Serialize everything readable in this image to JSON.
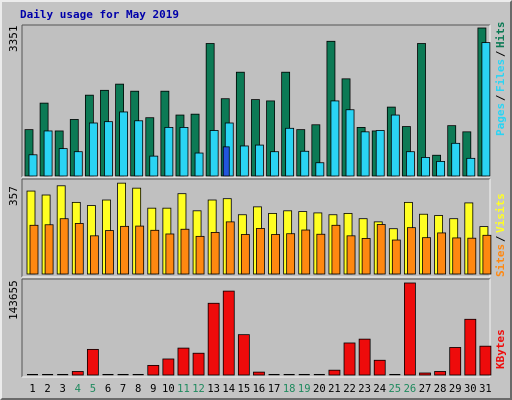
{
  "title": "Daily usage for May 2019",
  "colors": {
    "hits": "#0c7a55",
    "files": "#2ad4f4",
    "pages": "#2255dd",
    "visits": "#ffff22",
    "sites": "#ff8810",
    "kbytes": "#ee0b0b",
    "weekend_label": "#1f8a5e",
    "weekday_label": "#000000"
  },
  "chart_data": [
    {
      "type": "bar",
      "categories": [
        "1",
        "2",
        "3",
        "4",
        "5",
        "6",
        "7",
        "8",
        "9",
        "10",
        "11",
        "12",
        "13",
        "14",
        "15",
        "16",
        "17",
        "18",
        "19",
        "20",
        "21",
        "22",
        "23",
        "24",
        "25",
        "26",
        "27",
        "28",
        "29",
        "30",
        "31"
      ],
      "weekend_days": [
        "4",
        "5",
        "11",
        "12",
        "18",
        "19",
        "25",
        "26"
      ],
      "ymax_label": "3351",
      "ylim": [
        0,
        3351
      ],
      "series": [
        {
          "name": "Hits",
          "values": [
            1050,
            1650,
            1020,
            1280,
            1830,
            1940,
            2080,
            1920,
            1320,
            1920,
            1380,
            1400,
            3000,
            1750,
            2350,
            1730,
            1700,
            2350,
            1050,
            1160,
            3050,
            2200,
            1100,
            1020,
            1560,
            1120,
            3000,
            470,
            1140,
            1000,
            3351
          ]
        },
        {
          "name": "Files",
          "values": [
            480,
            1020,
            620,
            550,
            1200,
            1230,
            1450,
            1250,
            450,
            1100,
            1100,
            520,
            1030,
            1200,
            680,
            700,
            550,
            1080,
            560,
            300,
            1700,
            1500,
            1000,
            1030,
            1380,
            550,
            420,
            330,
            740,
            400,
            3020
          ]
        },
        {
          "name": "Pages",
          "values": [
            0,
            0,
            0,
            0,
            0,
            0,
            0,
            0,
            0,
            0,
            0,
            0,
            0,
            660,
            0,
            0,
            0,
            0,
            0,
            0,
            0,
            0,
            0,
            0,
            0,
            0,
            0,
            0,
            0,
            0,
            0
          ]
        }
      ],
      "legend": [
        "Pages",
        "Files",
        "Hits"
      ]
    },
    {
      "type": "bar",
      "categories": [
        "1",
        "2",
        "3",
        "4",
        "5",
        "6",
        "7",
        "8",
        "9",
        "10",
        "11",
        "12",
        "13",
        "14",
        "15",
        "16",
        "17",
        "18",
        "19",
        "20",
        "21",
        "22",
        "23",
        "24",
        "25",
        "26",
        "27",
        "28",
        "29",
        "30",
        "31"
      ],
      "ymax_label": "357",
      "ylim": [
        0,
        357
      ],
      "series": [
        {
          "name": "Visits",
          "values": [
            315,
            300,
            335,
            272,
            260,
            281,
            345,
            326,
            250,
            250,
            305,
            240,
            281,
            286,
            225,
            255,
            230,
            240,
            237,
            232,
            225,
            230,
            210,
            198,
            172,
            272,
            227,
            222,
            210,
            270,
            180
          ]
        },
        {
          "name": "Sites",
          "values": [
            185,
            187,
            210,
            192,
            145,
            165,
            181,
            182,
            166,
            152,
            170,
            143,
            158,
            198,
            150,
            173,
            150,
            153,
            167,
            151,
            185,
            145,
            135,
            188,
            129,
            176,
            138,
            156,
            137,
            136,
            147
          ]
        }
      ],
      "legend": [
        "Sites",
        "Visits"
      ]
    },
    {
      "type": "bar",
      "categories": [
        "1",
        "2",
        "3",
        "4",
        "5",
        "6",
        "7",
        "8",
        "9",
        "10",
        "11",
        "12",
        "13",
        "14",
        "15",
        "16",
        "17",
        "18",
        "19",
        "20",
        "21",
        "22",
        "23",
        "24",
        "25",
        "26",
        "27",
        "28",
        "29",
        "30",
        "31"
      ],
      "ymax_label": "143655",
      "ylim": [
        0,
        143655
      ],
      "series": [
        {
          "name": "KBytes",
          "values": [
            0,
            0,
            0,
            5500,
            40000,
            0,
            0,
            0,
            15000,
            25000,
            42000,
            34000,
            112000,
            131000,
            63000,
            4500,
            0,
            0,
            0,
            0,
            7500,
            50000,
            56000,
            23000,
            0,
            143655,
            2500,
            5500,
            43000,
            87000,
            45000
          ]
        }
      ],
      "legend": [
        "KBytes"
      ]
    }
  ]
}
